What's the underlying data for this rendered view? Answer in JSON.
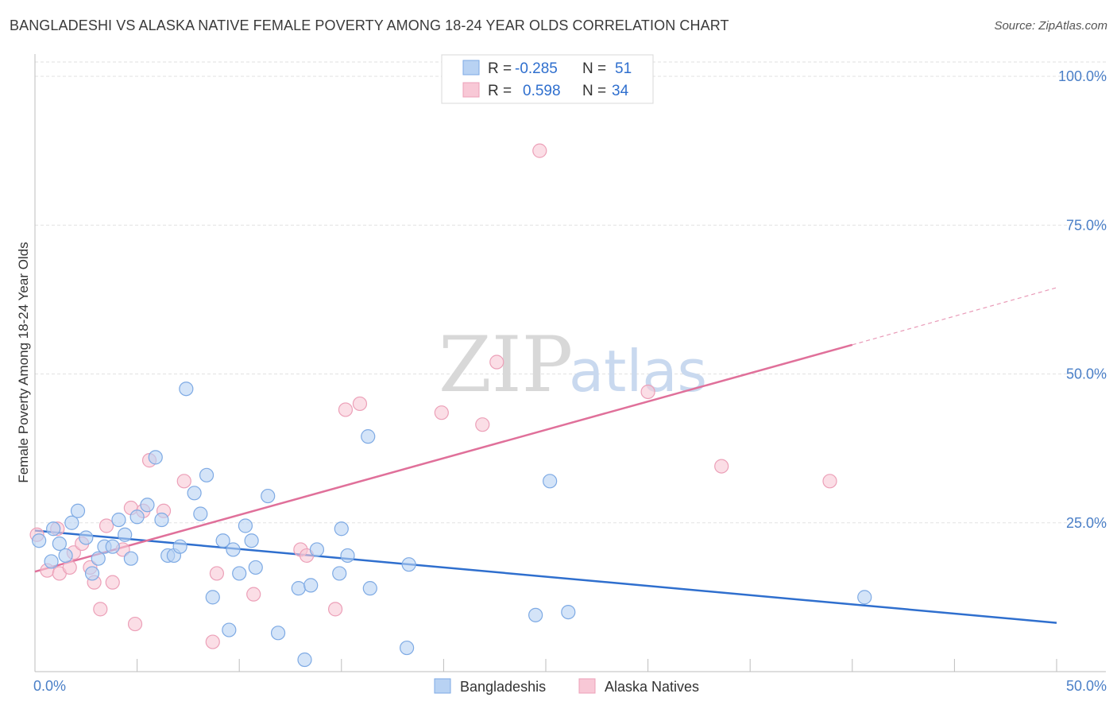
{
  "header": {
    "title": "BANGLADESHI VS ALASKA NATIVE FEMALE POVERTY AMONG 18-24 YEAR OLDS CORRELATION CHART",
    "source": "Source: ZipAtlas.com"
  },
  "watermark": {
    "zip": "ZIP",
    "atlas": "atlas"
  },
  "legend": {
    "rows": [
      {
        "r_label": "R =",
        "r_value": "-0.285",
        "n_label": "N =",
        "n_value": "51"
      },
      {
        "r_label": "R =",
        "r_value": "0.598",
        "n_label": "N =",
        "n_value": "34"
      }
    ]
  },
  "bottom_legend": {
    "items": [
      {
        "label": "Bangladeshis"
      },
      {
        "label": "Alaska Natives"
      }
    ]
  },
  "chart_data": {
    "type": "scatter",
    "title": "BANGLADESHI VS ALASKA NATIVE FEMALE POVERTY AMONG 18-24 YEAR OLDS CORRELATION CHART",
    "xlabel": "",
    "ylabel": "Female Poverty Among 18-24 Year Olds",
    "xlim": [
      0,
      50
    ],
    "ylim": [
      0,
      100
    ],
    "x_tick_labels": [
      "0.0%",
      "50.0%"
    ],
    "y_ticks": [
      25,
      50,
      75,
      100
    ],
    "y_tick_labels": [
      "25.0%",
      "50.0%",
      "75.0%",
      "100.0%"
    ],
    "grid": true,
    "legend_placement": "top-center",
    "colors": {
      "bangladeshis_fill": "#b8d2f3",
      "bangladeshis_stroke": "#7eaae4",
      "bangladeshis_line": "#2f6fce",
      "alaska_fill": "#f8c8d6",
      "alaska_stroke": "#eca0b8",
      "alaska_line": "#e0709a"
    },
    "series": [
      {
        "name": "Bangladeshis",
        "trend": {
          "x": [
            0,
            50
          ],
          "y": [
            23.7,
            8.2
          ]
        },
        "points": [
          [
            0.2,
            22.0
          ],
          [
            0.8,
            18.5
          ],
          [
            0.9,
            24.0
          ],
          [
            1.2,
            21.5
          ],
          [
            1.5,
            19.5
          ],
          [
            1.8,
            25.0
          ],
          [
            2.1,
            27.0
          ],
          [
            2.5,
            22.5
          ],
          [
            2.8,
            16.5
          ],
          [
            3.1,
            19.0
          ],
          [
            3.4,
            21.0
          ],
          [
            3.8,
            21.0
          ],
          [
            4.1,
            25.5
          ],
          [
            4.4,
            23.0
          ],
          [
            4.7,
            19.0
          ],
          [
            5.0,
            26.0
          ],
          [
            5.5,
            28.0
          ],
          [
            5.9,
            36.0
          ],
          [
            6.2,
            25.5
          ],
          [
            6.5,
            19.5
          ],
          [
            6.8,
            19.5
          ],
          [
            7.1,
            21.0
          ],
          [
            7.4,
            47.5
          ],
          [
            7.8,
            30.0
          ],
          [
            8.1,
            26.5
          ],
          [
            8.4,
            33.0
          ],
          [
            8.7,
            12.5
          ],
          [
            9.2,
            22.0
          ],
          [
            9.5,
            7.0
          ],
          [
            9.7,
            20.5
          ],
          [
            10.0,
            16.5
          ],
          [
            10.3,
            24.5
          ],
          [
            10.6,
            22.0
          ],
          [
            10.8,
            17.5
          ],
          [
            11.4,
            29.5
          ],
          [
            11.9,
            6.5
          ],
          [
            12.9,
            14.0
          ],
          [
            13.2,
            2.0
          ],
          [
            13.5,
            14.5
          ],
          [
            13.8,
            20.5
          ],
          [
            14.9,
            16.5
          ],
          [
            15.0,
            24.0
          ],
          [
            15.3,
            19.5
          ],
          [
            16.4,
            14.0
          ],
          [
            16.3,
            39.5
          ],
          [
            18.3,
            18.0
          ],
          [
            18.2,
            4.0
          ],
          [
            24.5,
            9.5
          ],
          [
            25.2,
            32.0
          ],
          [
            26.1,
            10.0
          ],
          [
            40.6,
            12.5
          ]
        ]
      },
      {
        "name": "Alaska Natives",
        "trend": {
          "x": [
            0,
            40
          ],
          "y": [
            16.8,
            54.9
          ]
        },
        "trend_extension": {
          "x": [
            40,
            50
          ],
          "y": [
            54.9,
            64.5
          ]
        },
        "points": [
          [
            0.1,
            23.0
          ],
          [
            0.6,
            17.0
          ],
          [
            1.1,
            24.0
          ],
          [
            1.2,
            16.5
          ],
          [
            1.7,
            17.5
          ],
          [
            1.9,
            20.0
          ],
          [
            2.3,
            21.5
          ],
          [
            2.7,
            17.5
          ],
          [
            2.9,
            15.0
          ],
          [
            3.2,
            10.5
          ],
          [
            3.5,
            24.5
          ],
          [
            3.8,
            15.0
          ],
          [
            4.3,
            20.5
          ],
          [
            4.7,
            27.5
          ],
          [
            4.9,
            8.0
          ],
          [
            5.3,
            27.0
          ],
          [
            5.6,
            35.5
          ],
          [
            6.3,
            27.0
          ],
          [
            7.3,
            32.0
          ],
          [
            8.7,
            5.0
          ],
          [
            8.9,
            16.5
          ],
          [
            10.7,
            13.0
          ],
          [
            13.0,
            20.5
          ],
          [
            13.3,
            19.5
          ],
          [
            14.7,
            10.5
          ],
          [
            15.2,
            44.0
          ],
          [
            15.9,
            45.0
          ],
          [
            19.9,
            43.5
          ],
          [
            21.9,
            41.5
          ],
          [
            22.6,
            52.0
          ],
          [
            24.7,
            87.5
          ],
          [
            30.0,
            47.0
          ],
          [
            33.6,
            34.5
          ],
          [
            38.9,
            32.0
          ]
        ]
      }
    ]
  }
}
